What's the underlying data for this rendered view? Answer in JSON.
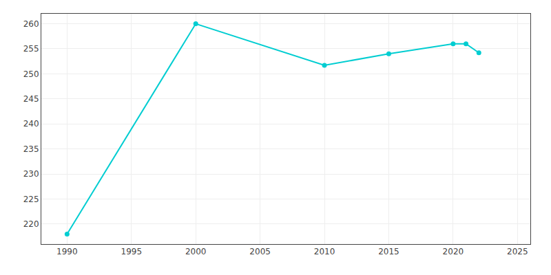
{
  "chart_data": {
    "type": "line",
    "x": [
      1990,
      2000,
      2010,
      2015,
      2020,
      2021,
      2022
    ],
    "values": [
      218.0,
      260.0,
      251.7,
      254.0,
      256.0,
      256.0,
      254.2
    ],
    "color": "#00CDD1",
    "marker": "circle",
    "xlim": [
      1988,
      2026
    ],
    "ylim": [
      216,
      262
    ],
    "xticks": [
      1990,
      1995,
      2000,
      2005,
      2010,
      2015,
      2020,
      2025
    ],
    "yticks": [
      220,
      225,
      230,
      235,
      240,
      245,
      250,
      255,
      260
    ],
    "grid": true
  }
}
